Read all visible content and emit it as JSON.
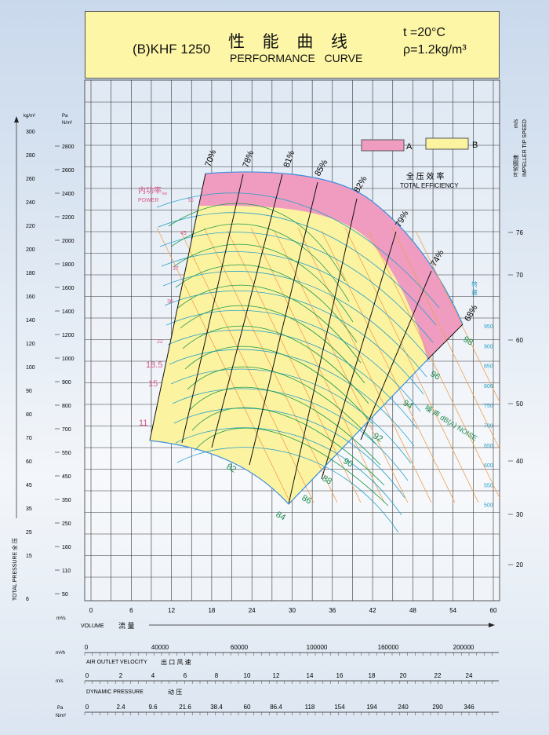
{
  "header": {
    "model": "(B)KHF 1250",
    "title_cn": "性 能 曲 线",
    "title_en": "PERFORMANCE   CURVE",
    "temperature": "t =20°C",
    "density": "ρ=1.2kg/m³"
  },
  "legend": {
    "a_label": "A",
    "b_label": "B",
    "efficiency_cn": "全 压 效 率",
    "efficiency_en": "TOTAL EFFICIENCY",
    "a_color": "#ef9cc0",
    "b_color": "#fbf3a0"
  },
  "labels": {
    "power_cn": "内功率",
    "power_kw": "kw",
    "power_en": "POWER",
    "speed_cn": "转 速",
    "noise": "噪 声 dB(A) NOISE",
    "tip_speed_cn": "叶轮圆速",
    "tip_speed_unit": "m/s",
    "tip_speed_en": "IMPELLER TIP SPEED",
    "pressure_unit_kg": "kg/m²",
    "pressure_unit_pa": "Pa",
    "pressure_unit_nm": "N/m²",
    "total_pressure": "TOTAL PRESSURE 全 压",
    "volume_unit": "m³/s",
    "volume_label": "VOLUME",
    "volume_cn": "流 量",
    "outlet_unit": "m³/h",
    "outlet_label": "AIR OUTLET VELOCITY",
    "outlet_cn": "出 口 风 速",
    "velocity_unit": "m/s",
    "dynamic_label": "DYNAMIC PRESSURE",
    "dynamic_cn": "动 压",
    "dyn_unit_pa": "Pa",
    "dyn_unit_nm": "N/m²"
  },
  "chart_data": {
    "type": "line",
    "x_axis": {
      "label": "VOLUME",
      "unit": "m³/s",
      "ticks": [
        0,
        6,
        12,
        18,
        24,
        30,
        36,
        42,
        48,
        54,
        60
      ]
    },
    "y_axis_pa": {
      "label": "TOTAL PRESSURE",
      "unit": "Pa",
      "ticks": [
        2800,
        2600,
        2400,
        2200,
        2000,
        1800,
        1600,
        1400,
        1200,
        1000,
        900,
        800,
        700,
        550,
        450,
        350,
        250,
        160,
        110,
        50
      ]
    },
    "y_axis_kg": {
      "unit": "kg/m²",
      "ticks": [
        300,
        280,
        260,
        240,
        220,
        200,
        180,
        160,
        140,
        120,
        100,
        90,
        80,
        70,
        60,
        45,
        35,
        25,
        15,
        6
      ]
    },
    "tip_speed_ticks": [
      76,
      70,
      60,
      50,
      40,
      30,
      20
    ],
    "rpm_ticks": [
      950,
      900,
      850,
      800,
      750,
      700,
      650,
      600,
      550,
      500
    ],
    "efficiency_lines": [
      "70%",
      "78%",
      "81%",
      "85%",
      "82%",
      "79%",
      "74%",
      "68%"
    ],
    "power_labels": [
      "55",
      "45",
      "37",
      "30",
      "22",
      "18.5",
      "15",
      "11"
    ],
    "noise_labels": [
      "98",
      "96",
      "94",
      "92",
      "90",
      "88",
      "86",
      "84",
      "82"
    ],
    "outlet_flow_ticks": [
      "0",
      "40000",
      "60000",
      "100000",
      "160000",
      "200000"
    ],
    "outlet_velocity_ticks": [
      "0",
      "2",
      "4",
      "6",
      "8",
      "10",
      "12",
      "14",
      "16",
      "18",
      "20",
      "22",
      "24"
    ],
    "dynamic_pressure_ticks": [
      "0",
      "2.4",
      "9.6",
      "21.6",
      "38.4",
      "60",
      "86.4",
      "118",
      "154",
      "194",
      "240",
      "290",
      "346"
    ]
  }
}
